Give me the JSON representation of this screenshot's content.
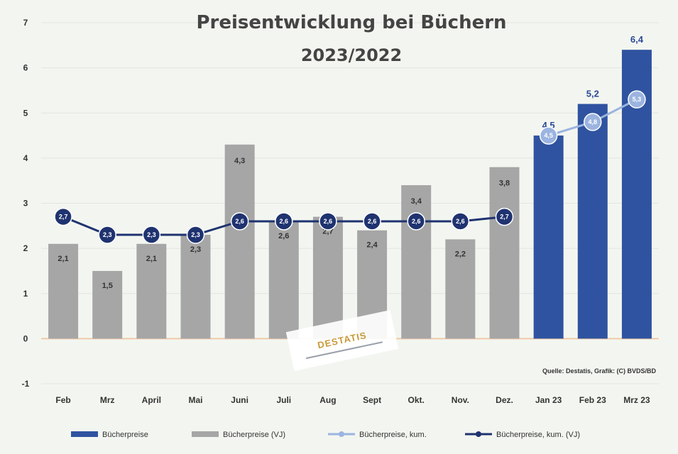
{
  "chart_data": {
    "type": "bar",
    "title_lines": [
      "Preisentwicklung bei Büchern",
      "2023/2022"
    ],
    "categories": [
      "Feb",
      "Mrz",
      "April",
      "Mai",
      "Juni",
      "Juli",
      "Aug",
      "Sept",
      "Okt.",
      "Nov.",
      "Dez.",
      "Jan 23",
      "Feb 23",
      "Mrz 23"
    ],
    "ylim": [
      -1,
      7
    ],
    "yticks": [
      "-1",
      "0",
      "1",
      "2",
      "3",
      "4",
      "5",
      "6",
      "7"
    ],
    "grid": true,
    "legend_position": "bottom",
    "series": [
      {
        "name": "Bücherpreise",
        "kind": "bar",
        "color": "#2f53a0",
        "values": [
          null,
          null,
          null,
          null,
          null,
          null,
          null,
          null,
          null,
          null,
          null,
          4.5,
          5.2,
          6.4
        ],
        "labels": [
          "",
          "",
          "",
          "",
          "",
          "",
          "",
          "",
          "",
          "",
          "",
          "4,5",
          "5,2",
          "6,4"
        ]
      },
      {
        "name": "Bücherpreise (VJ)",
        "kind": "bar",
        "color": "#a6a6a6",
        "values": [
          2.1,
          1.5,
          2.1,
          2.3,
          4.3,
          2.6,
          2.7,
          2.4,
          3.4,
          2.2,
          3.8,
          null,
          null,
          null
        ],
        "labels": [
          "2,1",
          "1,5",
          "2,1",
          "2,3",
          "4,3",
          "2,6",
          "2,7",
          "2,4",
          "3,4",
          "2,2",
          "3,8",
          "",
          "",
          ""
        ]
      },
      {
        "name": "Bücherpreise, kum.",
        "kind": "line",
        "color": "#9bb4e0",
        "values": [
          null,
          null,
          null,
          null,
          null,
          null,
          null,
          null,
          null,
          null,
          null,
          4.5,
          4.8,
          5.3
        ],
        "labels": [
          "",
          "",
          "",
          "",
          "",
          "",
          "",
          "",
          "",
          "",
          "",
          "4,5",
          "4,8",
          "5,3"
        ]
      },
      {
        "name": "Bücherpreise, kum. (VJ)",
        "kind": "line",
        "color": "#1f3370",
        "values": [
          2.7,
          2.3,
          2.3,
          2.3,
          2.6,
          2.6,
          2.6,
          2.6,
          2.6,
          2.6,
          2.7,
          null,
          null,
          null
        ],
        "labels": [
          "2,7",
          "2,3",
          "2,3",
          "2,3",
          "2,6",
          "2,6",
          "2,6",
          "2,6",
          "2,6",
          "2,6",
          "2,7",
          "",
          "",
          ""
        ]
      }
    ],
    "source": "Quelle: Destatis, Grafik: (C) BVDS/BD",
    "watermark": "DESTATIS"
  }
}
